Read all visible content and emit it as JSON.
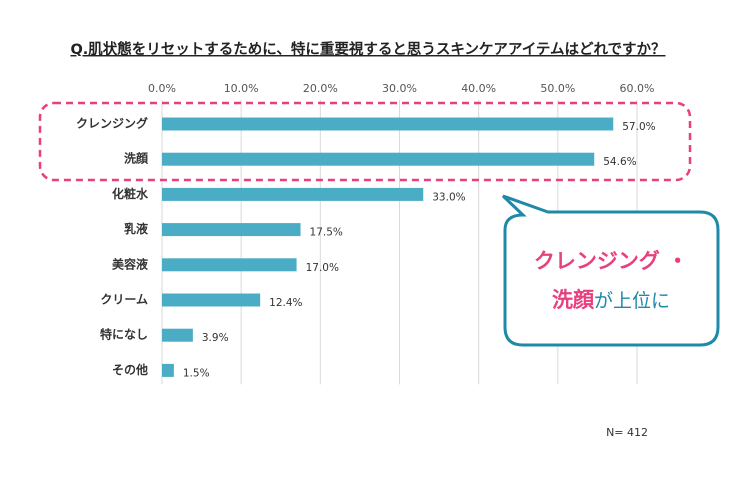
{
  "chart_data": {
    "type": "bar",
    "orientation": "horizontal",
    "title": "Q.肌状態をリセットするために、特に重要視すると思うスキンケアアイテムはどれですか？",
    "categories": [
      "クレンジング",
      "洗顔",
      "化粧水",
      "乳液",
      "美容液",
      "クリーム",
      "特になし",
      "その他"
    ],
    "values": [
      57.0,
      54.6,
      33.0,
      17.5,
      17.0,
      12.4,
      3.9,
      1.5
    ],
    "value_labels": [
      "57.0%",
      "54.6%",
      "33.0%",
      "17.5%",
      "17.0%",
      "12.4%",
      "3.9%",
      "1.5%"
    ],
    "color": "#4bacc6",
    "xlim": [
      0,
      60
    ],
    "xticks": [
      {
        "value": 0,
        "label": "0.0%"
      },
      {
        "value": 10,
        "label": "10.0%"
      },
      {
        "value": 20,
        "label": "20.0%"
      },
      {
        "value": 30,
        "label": "30.0%"
      },
      {
        "value": 40,
        "label": "40.0%"
      },
      {
        "value": 50,
        "label": "50.0%"
      },
      {
        "value": 60,
        "label": "60.0%"
      }
    ],
    "grid": true,
    "sample_size": "N= 412",
    "callout": {
      "line1": "クレンジング ・",
      "highlight": "洗顔",
      "rest": "が上位に"
    }
  }
}
